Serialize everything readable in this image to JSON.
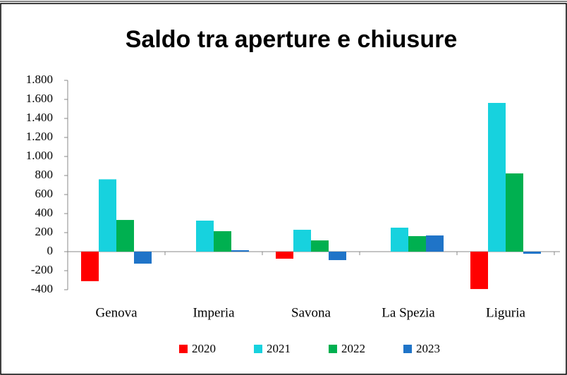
{
  "chart_data": {
    "type": "bar",
    "title": "Saldo tra aperture e chiusure",
    "categories": [
      "Genova",
      "Imperia",
      "Savona",
      "La Spezia",
      "Liguria"
    ],
    "series": [
      {
        "name": "2020",
        "color": "#ff0000",
        "values": [
          -310,
          0,
          -74,
          0,
          -393
        ]
      },
      {
        "name": "2021",
        "color": "#17d2de",
        "values": [
          760,
          326,
          230,
          252,
          1563
        ]
      },
      {
        "name": "2022",
        "color": "#00b050",
        "values": [
          333,
          215,
          118,
          163,
          822
        ]
      },
      {
        "name": "2023",
        "color": "#1f74c8",
        "values": [
          -126,
          15,
          -89,
          170,
          -22
        ]
      }
    ],
    "ylim": [
      -400,
      1800
    ],
    "yticks": [
      -400,
      -200,
      0,
      200,
      400,
      600,
      800,
      {
        "value": 1000,
        "label": "1.000"
      },
      {
        "value": 1200,
        "label": "1.200"
      },
      {
        "value": 1400,
        "label": "1.400"
      },
      {
        "value": 1600,
        "label": "1.600"
      },
      {
        "value": 1800,
        "label": "1.800"
      }
    ],
    "grid": false,
    "legend": "bottom"
  }
}
